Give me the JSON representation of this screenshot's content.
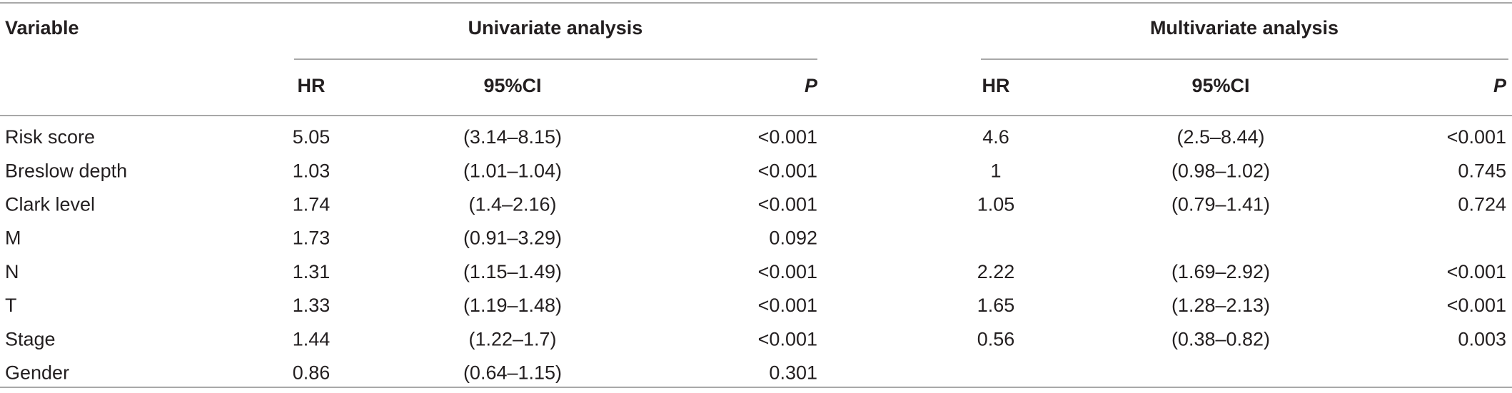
{
  "table": {
    "header": {
      "variable": "Variable",
      "univariate": "Univariate analysis",
      "multivariate": "Multivariate analysis",
      "columns": [
        "HR",
        "95%CI",
        "P",
        "HR",
        "95%CI",
        "P"
      ]
    },
    "rows": [
      {
        "variable": "Risk score",
        "univariate": [
          "5.05",
          "(3.14–8.15)",
          "<0.001"
        ],
        "multivariate": [
          "4.6",
          "(2.5–8.44)",
          "<0.001"
        ]
      },
      {
        "variable": "Breslow depth",
        "univariate": [
          "1.03",
          "(1.01–1.04)",
          "<0.001"
        ],
        "multivariate": [
          "1",
          "(0.98–1.02)",
          "0.745"
        ]
      },
      {
        "variable": "Clark level",
        "univariate": [
          "1.74",
          "(1.4–2.16)",
          "<0.001"
        ],
        "multivariate": [
          "1.05",
          "(0.79–1.41)",
          "0.724"
        ]
      },
      {
        "variable": "M",
        "univariate": [
          "1.73",
          "(0.91–3.29)",
          "0.092"
        ],
        "multivariate": null
      },
      {
        "variable": "N",
        "univariate": [
          "1.31",
          "(1.15–1.49)",
          "<0.001"
        ],
        "multivariate": [
          "2.22",
          "(1.69–2.92)",
          "<0.001"
        ]
      },
      {
        "variable": "T",
        "univariate": [
          "1.33",
          "(1.19–1.48)",
          "<0.001"
        ],
        "multivariate": [
          "1.65",
          "(1.28–2.13)",
          "<0.001"
        ]
      },
      {
        "variable": "Stage",
        "univariate": [
          "1.44",
          "(1.22–1.7)",
          "<0.001"
        ],
        "multivariate": [
          "0.56",
          "(0.38–0.82)",
          "0.003"
        ]
      },
      {
        "variable": "Gender",
        "univariate": [
          "0.86",
          "(0.64–1.15)",
          "0.301"
        ],
        "multivariate": null
      }
    ]
  }
}
